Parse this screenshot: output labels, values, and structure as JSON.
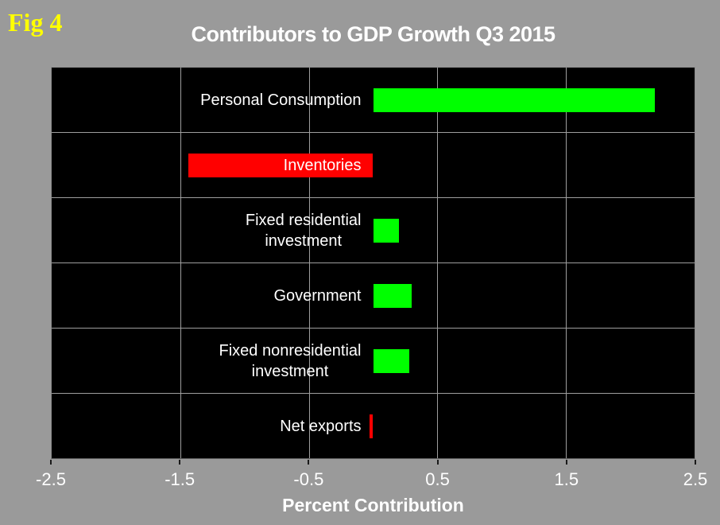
{
  "fig_label": "Fig 4",
  "title": "Contributors to GDP Growth Q3 2015",
  "xlabel": "Percent Contribution",
  "colors": {
    "background": "#9a9a9a",
    "plot_background": "#000000",
    "positive_bar": "#00ff00",
    "negative_bar": "#ff0000",
    "gridline": "#9e9e9e",
    "text": "#ffffff",
    "fig_label": "#ffff00"
  },
  "chart_data": {
    "type": "bar",
    "orientation": "horizontal",
    "title": "Contributors to GDP Growth Q3 2015",
    "xlabel": "Percent Contribution",
    "categories": [
      "Personal Consumption",
      "Inventories",
      "Fixed residential investment",
      "Government",
      "Fixed nonresidential investment",
      "Net exports"
    ],
    "categories_display": [
      "Personal Consumption",
      "Inventories",
      "Fixed residential\ninvestment",
      "Government",
      "Fixed nonresidential\ninvestment",
      "Net exports"
    ],
    "values": [
      2.19,
      -1.44,
      0.2,
      0.3,
      0.28,
      -0.03
    ],
    "bar_colors": [
      "#00ff00",
      "#ff0000",
      "#00ff00",
      "#00ff00",
      "#00ff00",
      "#ff0000"
    ],
    "xlim": [
      -2.5,
      2.5
    ],
    "xticks": [
      -2.5,
      -1.5,
      -0.5,
      0.5,
      1.5,
      2.5
    ],
    "xtick_labels": [
      "-2.5",
      "-1.5",
      "-0.5",
      "0.5",
      "1.5",
      "2.5"
    ],
    "grid": true,
    "legend": false
  }
}
